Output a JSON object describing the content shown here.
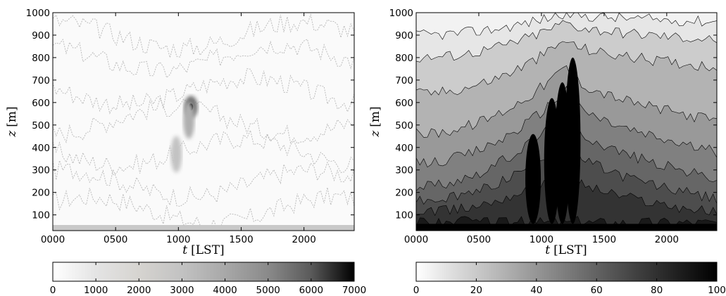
{
  "chart_data": [
    {
      "type": "heatmap",
      "style": "filled-contour, grayscale",
      "x_variable": "t",
      "x_unit": "[LST]",
      "y_variable": "z",
      "y_unit": "[m]",
      "xlim": [
        "0000",
        "2400"
      ],
      "ylim": [
        30,
        1000
      ],
      "x_ticks": [
        "0000",
        "0500",
        "1000",
        "1500",
        "2000"
      ],
      "y_ticks": [
        "100",
        "200",
        "300",
        "400",
        "500",
        "600",
        "700",
        "800",
        "900",
        "1000"
      ],
      "colorbar": {
        "orientation": "horizontal",
        "range": [
          0,
          7000
        ],
        "ticks": [
          "0",
          "1000",
          "2000",
          "3000",
          "4000",
          "5000",
          "6000",
          "7000"
        ],
        "colors": [
          "#ffffff",
          "#e4e4e4",
          "#d6d4d0",
          "#c2c2c2",
          "#a8a8a8",
          "#8a8a8a",
          "#5a5a5a",
          "#000000"
        ]
      },
      "features": [
        {
          "t": "1100",
          "z": 580,
          "value": 7000
        },
        {
          "t": "1050",
          "z": 520,
          "value": 4000
        },
        {
          "t": "0950",
          "z": 370,
          "value": 3000
        }
      ],
      "background_value": 0
    },
    {
      "type": "heatmap",
      "style": "filled-contour, grayscale",
      "x_variable": "t",
      "x_unit": "[LST]",
      "y_variable": "z",
      "y_unit": "[m]",
      "xlim": [
        "0000",
        "2400"
      ],
      "ylim": [
        30,
        1000
      ],
      "x_ticks": [
        "0000",
        "0500",
        "1000",
        "1500",
        "2000"
      ],
      "y_ticks": [
        "100",
        "200",
        "300",
        "400",
        "500",
        "600",
        "700",
        "800",
        "900",
        "1000"
      ],
      "colorbar": {
        "orientation": "horizontal",
        "range": [
          0,
          100
        ],
        "ticks": [
          "0",
          "20",
          "40",
          "60",
          "80",
          "100"
        ],
        "colors": [
          "#ffffff",
          "#dcdcdc",
          "#bdbdbd",
          "#9c9c9c",
          "#7c7c7c",
          "#5c5c5c",
          "#3c3c3c",
          "#1e1e1e",
          "#000000"
        ]
      },
      "levels": [
        {
          "value": 10,
          "z_morning": 900,
          "z_noon": 1000,
          "z_evening": 960
        },
        {
          "value": 20,
          "z_morning": 800,
          "z_noon": 960,
          "z_evening": 880
        },
        {
          "value": 30,
          "z_morning": 640,
          "z_noon": 880,
          "z_evening": 760
        },
        {
          "value": 40,
          "z_morning": 460,
          "z_noon": 760,
          "z_evening": 520
        },
        {
          "value": 50,
          "z_morning": 330,
          "z_noon": 660,
          "z_evening": 380
        },
        {
          "value": 60,
          "z_morning": 230,
          "z_noon": 560,
          "z_evening": 260
        },
        {
          "value": 70,
          "z_morning": 160,
          "z_noon": 440,
          "z_evening": 170
        },
        {
          "value": 80,
          "z_morning": 110,
          "z_noon": 300,
          "z_evening": 110
        },
        {
          "value": 90,
          "z_morning": 70,
          "z_noon": 70,
          "z_evening": 70
        }
      ],
      "plumes": [
        {
          "t": "0920",
          "z_top": 460,
          "value": 100
        },
        {
          "t": "1050",
          "z_top": 620,
          "value": 100
        },
        {
          "t": "1140",
          "z_top": 690,
          "value": 100
        },
        {
          "t": "1230",
          "z_top": 800,
          "value": 100
        }
      ]
    }
  ]
}
